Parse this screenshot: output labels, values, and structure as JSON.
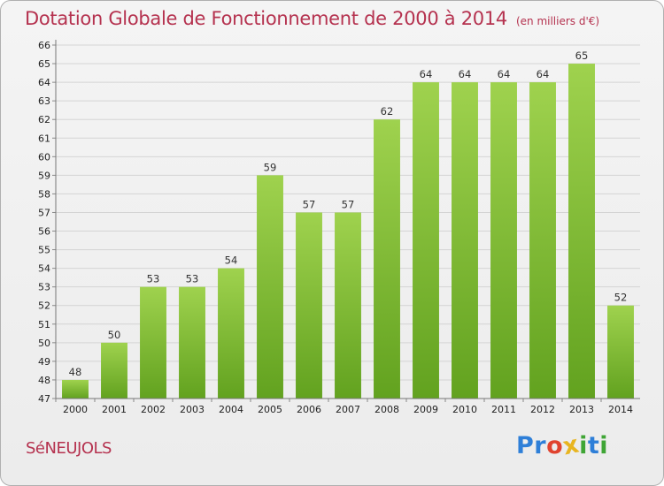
{
  "title": "Dotation Globale de Fonctionnement de 2000 à 2014",
  "subtitle": "(en milliers d'€)",
  "commune": "SéNEUJOLS",
  "logo": {
    "letters": [
      "P",
      "r",
      "o",
      "x",
      "i",
      "t",
      "i"
    ],
    "colors": [
      "#2e7fd8",
      "#2e7fd8",
      "#e0432f",
      "#e8b520",
      "#3fa535",
      "#2e7fd8",
      "#3fa535"
    ]
  },
  "chart_data": {
    "type": "bar",
    "title": "Dotation Globale de Fonctionnement de 2000 à 2014",
    "subtitle": "(en milliers d'€)",
    "categories": [
      "2000",
      "2001",
      "2002",
      "2003",
      "2004",
      "2005",
      "2006",
      "2007",
      "2008",
      "2009",
      "2010",
      "2011",
      "2012",
      "2013",
      "2014"
    ],
    "values": [
      48,
      50,
      53,
      53,
      54,
      59,
      57,
      57,
      62,
      64,
      64,
      64,
      64,
      65,
      52
    ],
    "xlabel": "",
    "ylabel": "",
    "ylim": [
      47,
      66
    ],
    "yticks": [
      47,
      48,
      49,
      50,
      51,
      52,
      53,
      54,
      55,
      56,
      57,
      58,
      59,
      60,
      61,
      62,
      63,
      64,
      65,
      66
    ],
    "grid": true,
    "bar_color": "#7fbf3a",
    "data_labels": true
  }
}
